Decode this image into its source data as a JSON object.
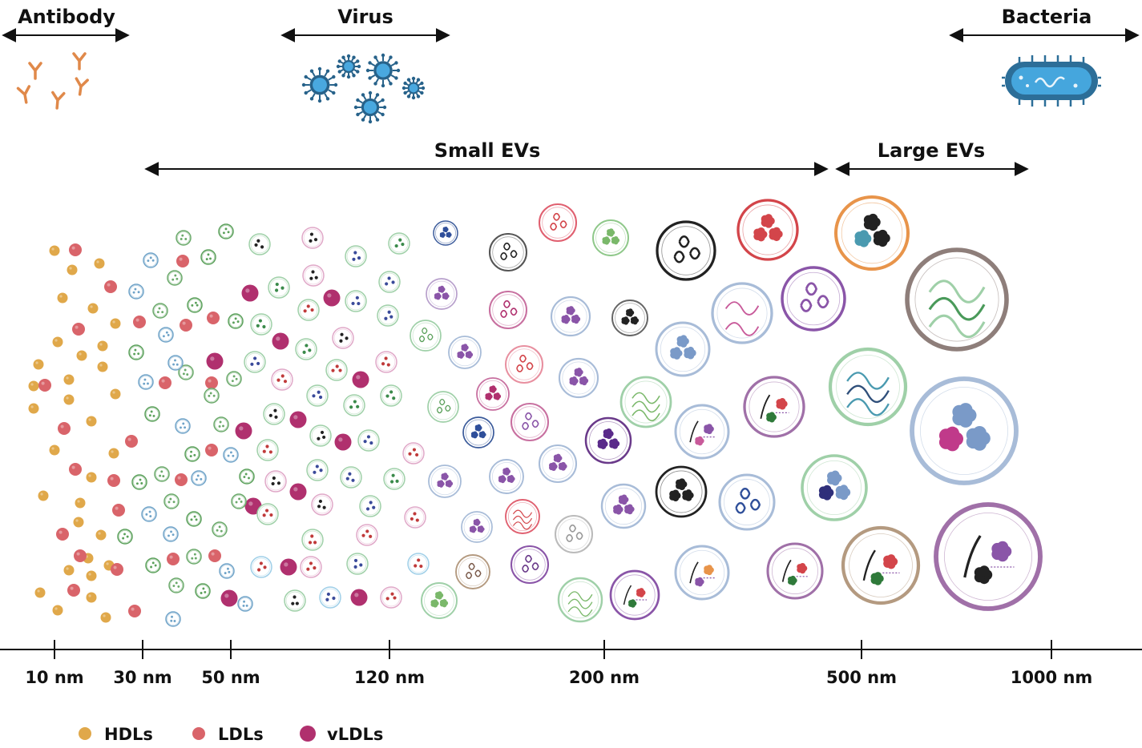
{
  "headers": {
    "antibody": "Antibody",
    "virus": "Virus",
    "bacteria": "Bacteria",
    "small_evs": "Small EVs",
    "large_evs": "Large EVs"
  },
  "axis": {
    "ticks": [
      "10 nm",
      "30 nm",
      "50 nm",
      "120 nm",
      "200 nm",
      "500 nm",
      "1000 nm"
    ]
  },
  "legend": [
    {
      "label": "HDLs",
      "color": "#e0a84a"
    },
    {
      "label": "LDLs",
      "color": "#d9646a"
    },
    {
      "label": "vLDLs",
      "color": "#b0306e"
    }
  ],
  "colors": {
    "antibody": "#e0894a",
    "virus": "#2a7fb5",
    "bacteria": "#2f86c0",
    "green": "#7fbf6a",
    "purple": "#8a55a8",
    "blue_grey": "#8ea6cc",
    "red": "#d3454a",
    "pink": "#c85a9a",
    "dark": "#222222",
    "orange": "#e8944a",
    "tan": "#b49a80",
    "grey_brown": "#8e7e7a"
  }
}
